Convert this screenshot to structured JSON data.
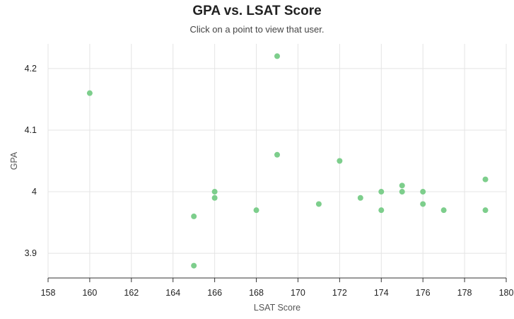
{
  "chart": {
    "title": "GPA vs. LSAT Score",
    "subtitle": "Click on a point to view that user."
  },
  "colors": {
    "point": "#7dce8c",
    "grid": "#e4e4e4",
    "axis": "#333333"
  },
  "chart_data": {
    "type": "scatter",
    "title": "GPA vs. LSAT Score",
    "subtitle": "Click on a point to view that user.",
    "xlabel": "LSAT Score",
    "ylabel": "GPA",
    "xlim": [
      158,
      180
    ],
    "ylim": [
      3.86,
      4.24
    ],
    "x_ticks": [
      158,
      160,
      162,
      164,
      166,
      168,
      170,
      172,
      174,
      176,
      178,
      180
    ],
    "y_ticks": [
      3.9,
      4,
      4.1,
      4.2
    ],
    "y_tick_labels": [
      "3.9",
      "4",
      "4.1",
      "4.2"
    ],
    "grid": true,
    "points": [
      {
        "x": 160,
        "y": 4.16
      },
      {
        "x": 165,
        "y": 3.96
      },
      {
        "x": 165,
        "y": 3.88
      },
      {
        "x": 166,
        "y": 4.0
      },
      {
        "x": 166,
        "y": 3.99
      },
      {
        "x": 168,
        "y": 3.97
      },
      {
        "x": 169,
        "y": 4.22
      },
      {
        "x": 169,
        "y": 4.06
      },
      {
        "x": 171,
        "y": 3.98
      },
      {
        "x": 172,
        "y": 4.05
      },
      {
        "x": 173,
        "y": 3.99
      },
      {
        "x": 174,
        "y": 4.0
      },
      {
        "x": 174,
        "y": 3.97
      },
      {
        "x": 175,
        "y": 4.01
      },
      {
        "x": 175,
        "y": 4.0
      },
      {
        "x": 176,
        "y": 4.0
      },
      {
        "x": 176,
        "y": 3.98
      },
      {
        "x": 177,
        "y": 3.97
      },
      {
        "x": 179,
        "y": 4.02
      },
      {
        "x": 179,
        "y": 3.97
      }
    ]
  }
}
